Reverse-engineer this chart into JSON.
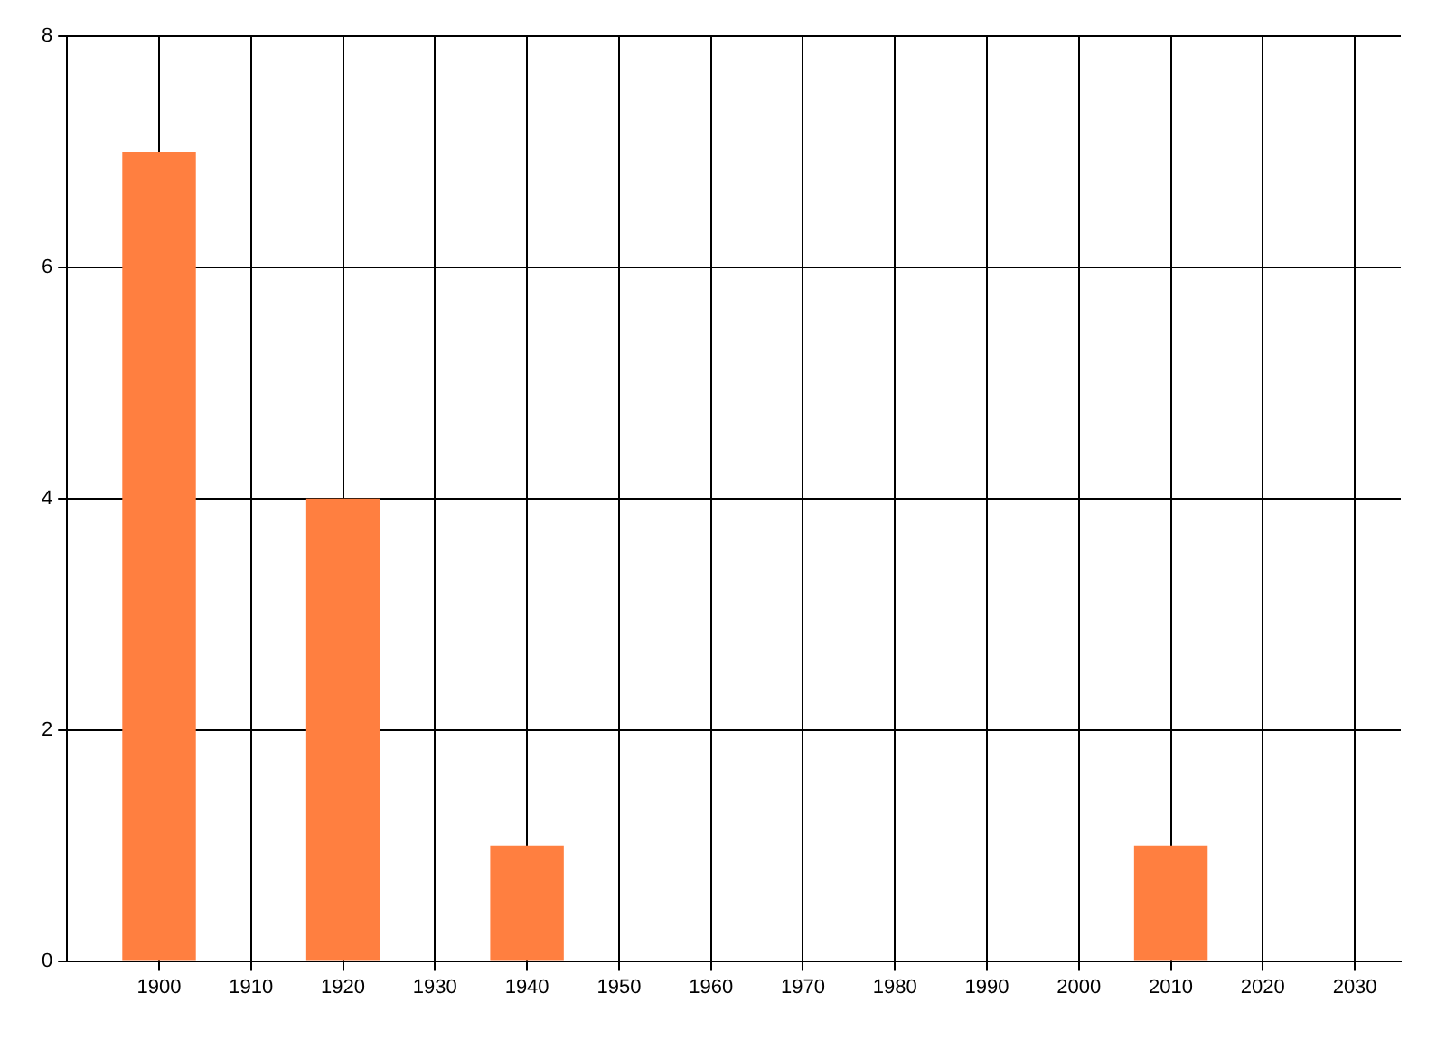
{
  "chart_data": {
    "type": "bar",
    "x": [
      1900,
      1920,
      1940,
      2010
    ],
    "values": [
      7,
      4,
      1,
      1
    ],
    "color": "#ff7f40",
    "xlim": [
      1890,
      2035
    ],
    "xticks": [
      1900,
      1910,
      1920,
      1930,
      1940,
      1950,
      1960,
      1970,
      1980,
      1990,
      2000,
      2010,
      2020,
      2030
    ],
    "ylim": [
      0,
      8
    ],
    "yticks": [
      0,
      2,
      4,
      6,
      8
    ],
    "grid": true,
    "legend": false
  }
}
